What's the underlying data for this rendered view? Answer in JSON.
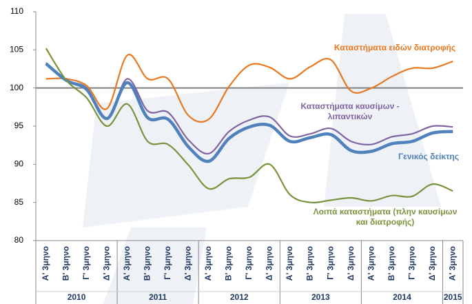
{
  "chart_data": {
    "type": "line",
    "categories": [
      "Α' 3μηνο",
      "Β' 3μηνο",
      "Γ' 3μηνο",
      "Δ' 3μηνο",
      "Α' 3μηνο",
      "Β' 3μηνο",
      "Γ' 3μηνο",
      "Δ' 3μηνο",
      "Α' 3μηνο",
      "Β' 3μηνο",
      "Γ' 3μηνο",
      "Δ' 3μηνο",
      "Α' 3μηνο",
      "Β' 3μηνο",
      "Γ' 3μηνο",
      "Δ' 3μηνο",
      "Α' 3μηνο",
      "Β' 3μηνο",
      "Γ' 3μηνο",
      "Δ' 3μηνο",
      "Α' 3μηνο"
    ],
    "x_groups": [
      {
        "label": "2010",
        "count": 4
      },
      {
        "label": "2011",
        "count": 4
      },
      {
        "label": "2012",
        "count": 4
      },
      {
        "label": "2013",
        "count": 4
      },
      {
        "label": "2014",
        "count": 4
      },
      {
        "label": "2015",
        "count": 1
      }
    ],
    "series": [
      {
        "name": "Καταστήματα ειδών διατροφής",
        "color": "#e8771e",
        "values": [
          101.2,
          101.2,
          100.3,
          97.3,
          104.3,
          101.2,
          101.2,
          96.4,
          95.9,
          100.2,
          103.0,
          102.7,
          101.2,
          102.8,
          103.7,
          99.6,
          100.0,
          101.5,
          102.6,
          102.6,
          103.5
        ]
      },
      {
        "name": "Καταστήματα καυσίμων - λιπαντικών",
        "color": "#8064a2",
        "values": [
          103.3,
          101.0,
          100.0,
          96.0,
          101.2,
          97.0,
          96.8,
          93.2,
          91.4,
          94.3,
          95.8,
          96.2,
          93.7,
          94.0,
          94.7,
          93.0,
          92.6,
          93.6,
          94.0,
          95.0,
          94.9
        ]
      },
      {
        "name": "Γενικός δείκτης",
        "color": "#4f81bd",
        "values": [
          103.2,
          101.0,
          99.8,
          96.0,
          100.7,
          96.1,
          95.9,
          92.3,
          90.4,
          93.4,
          94.9,
          95.1,
          93.0,
          93.5,
          93.9,
          91.8,
          91.7,
          92.7,
          93.0,
          94.1,
          94.3
        ]
      },
      {
        "name": "Λοιπά καταστήματα (πλην καυσίμων και διατροφής)",
        "color": "#77933c",
        "values": [
          105.2,
          101.0,
          98.7,
          95.0,
          97.9,
          93.0,
          92.6,
          89.9,
          86.8,
          88.1,
          88.3,
          90.0,
          86.0,
          85.0,
          85.3,
          85.6,
          85.2,
          85.9,
          85.8,
          87.4,
          86.5
        ]
      }
    ],
    "reference_line": 100,
    "ylim": [
      80,
      110
    ],
    "yticks": [
      80,
      85,
      90,
      95,
      100,
      105,
      110
    ]
  }
}
